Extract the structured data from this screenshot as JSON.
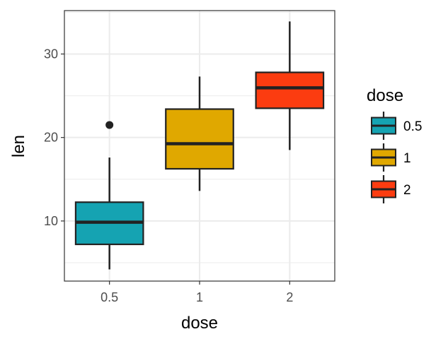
{
  "chart_data": {
    "type": "box",
    "xlabel": "dose",
    "ylabel": "len",
    "categories": [
      "0.5",
      "1",
      "2"
    ],
    "ylim": [
      2.8,
      35.2
    ],
    "yticks": [
      10,
      20,
      30
    ],
    "grid": true,
    "legend": {
      "title": "dose",
      "position": "right",
      "entries": [
        {
          "label": "0.5",
          "color": "#15A3B2"
        },
        {
          "label": "1",
          "color": "#E0A800"
        },
        {
          "label": "2",
          "color": "#FC3C10"
        }
      ]
    },
    "boxes": [
      {
        "category": "0.5",
        "min": 4.2,
        "q1": 7.2,
        "median": 9.85,
        "q3": 12.25,
        "max": 17.6,
        "outliers": [
          21.5
        ],
        "color": "#15A3B2"
      },
      {
        "category": "1",
        "min": 13.6,
        "q1": 16.25,
        "median": 19.25,
        "q3": 23.4,
        "max": 27.3,
        "outliers": [],
        "color": "#E0A800"
      },
      {
        "category": "2",
        "min": 18.5,
        "q1": 23.5,
        "median": 25.95,
        "q3": 27.8,
        "max": 33.9,
        "outliers": [],
        "color": "#FC3C10"
      }
    ]
  }
}
